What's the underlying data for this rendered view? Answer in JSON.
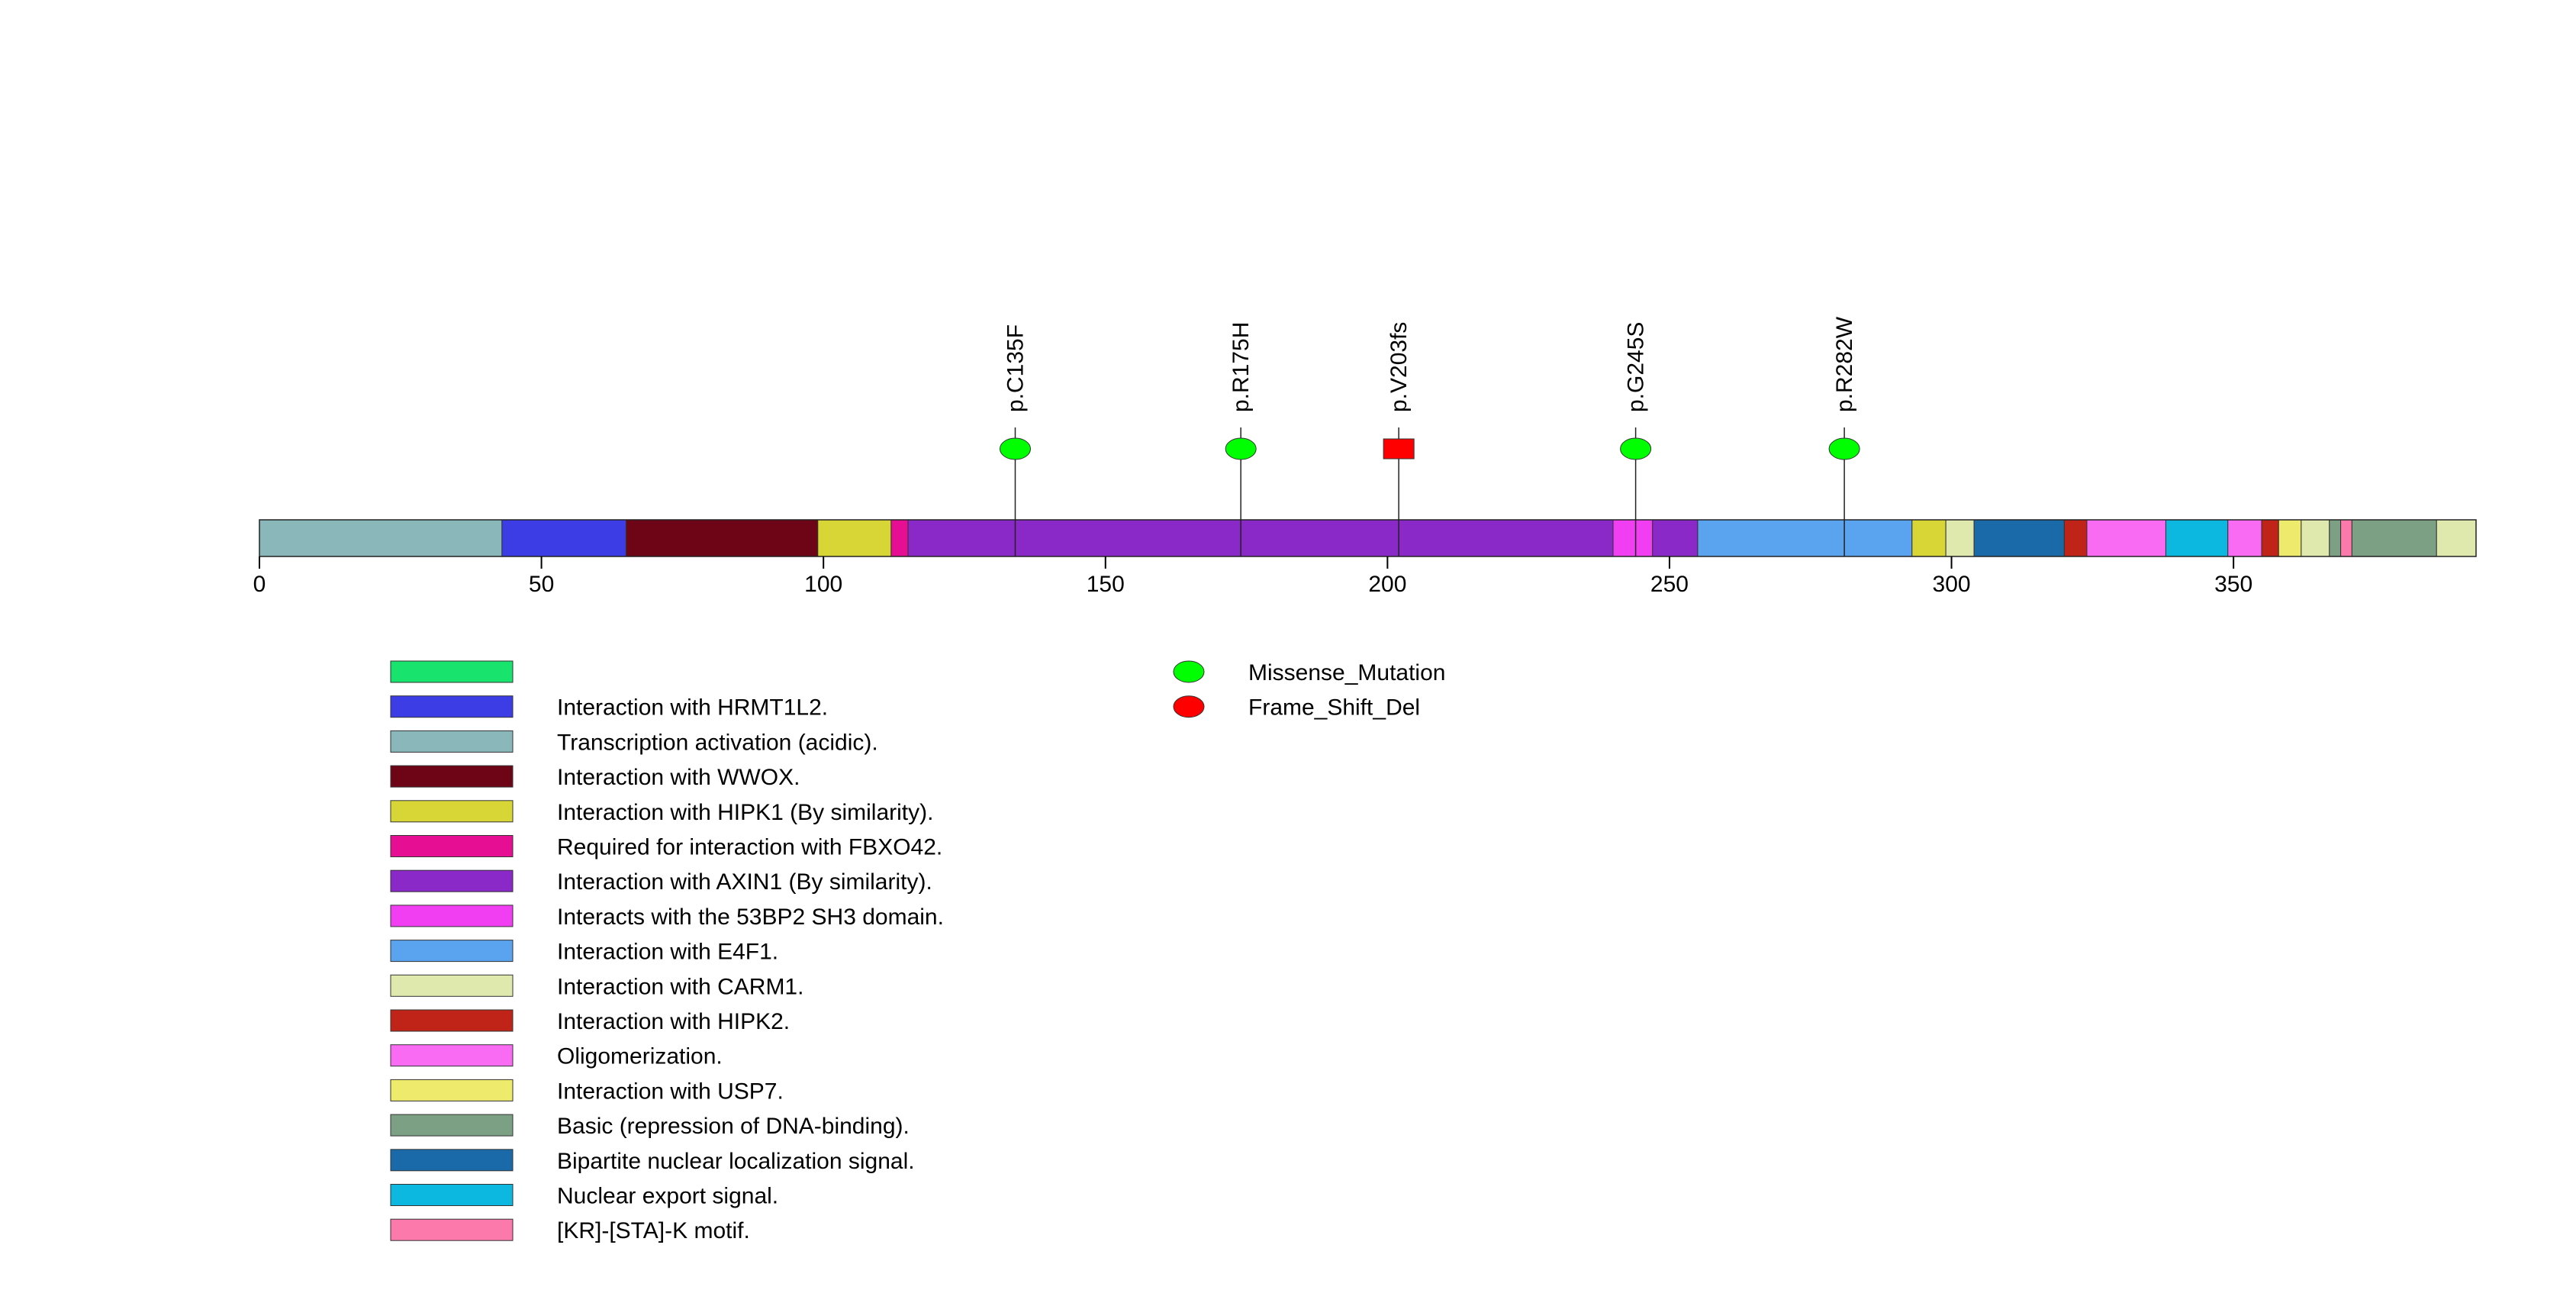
{
  "chart_data": {
    "type": "lollipop",
    "protein_length": 393,
    "axis": {
      "min": 0,
      "max": 393,
      "ticks": [
        0,
        50,
        100,
        150,
        200,
        250,
        300,
        350
      ],
      "tick_labels": [
        "0",
        "50",
        "100",
        "150",
        "200",
        "250",
        "300",
        "350"
      ]
    },
    "regions": [
      {
        "start": 0,
        "end": 43,
        "color": "#8ab7b9",
        "label": "Transcription activation (acidic)."
      },
      {
        "start": 43,
        "end": 65,
        "color": "#3d3de6",
        "label": "Interaction with HRMT1L2."
      },
      {
        "start": 65,
        "end": 99,
        "color": "#6e0517",
        "label": "Interaction with WWOX."
      },
      {
        "start": 99,
        "end": 112,
        "color": "#d8d637",
        "label": "Interaction with HIPK1 (By similarity)."
      },
      {
        "start": 112,
        "end": 115,
        "color": "#e60e93",
        "label": "Required for interaction with FBXO42."
      },
      {
        "start": 115,
        "end": 240,
        "color": "#8b28c8",
        "label": "Interaction with AXIN1 (By similarity)."
      },
      {
        "start": 240,
        "end": 247,
        "color": "#f23ef2",
        "label": "Interacts with the 53BP2 SH3 domain."
      },
      {
        "start": 247,
        "end": 255,
        "color": "#8b28c8",
        "label": "Interaction with AXIN1 (By similarity)."
      },
      {
        "start": 255,
        "end": 293,
        "color": "#5aa3ef",
        "label": "Interaction with E4F1."
      },
      {
        "start": 293,
        "end": 299,
        "color": "#d8d637",
        "label": "Interaction with HIPK1 (By similarity)."
      },
      {
        "start": 299,
        "end": 304,
        "color": "#dfe9ad",
        "label": "Interaction with CARM1."
      },
      {
        "start": 304,
        "end": 320,
        "color": "#1a6aa9",
        "label": "Bipartite nuclear localization signal."
      },
      {
        "start": 320,
        "end": 324,
        "color": "#c02418",
        "label": "Interaction with HIPK2."
      },
      {
        "start": 324,
        "end": 338,
        "color": "#f96bf3",
        "label": "Oligomerization."
      },
      {
        "start": 338,
        "end": 349,
        "color": "#0cb7e0",
        "label": "Nuclear export signal."
      },
      {
        "start": 349,
        "end": 355,
        "color": "#f96bf3",
        "label": "Oligomerization."
      },
      {
        "start": 355,
        "end": 358,
        "color": "#c02418",
        "label": "Interaction with HIPK2."
      },
      {
        "start": 358,
        "end": 362,
        "color": "#eeea6b",
        "label": "Interaction with USP7."
      },
      {
        "start": 362,
        "end": 367,
        "color": "#dfe9ad",
        "label": "Interaction with CARM1."
      },
      {
        "start": 367,
        "end": 369,
        "color": "#7ca083",
        "label": "Basic (repression of DNA-binding)."
      },
      {
        "start": 369,
        "end": 371,
        "color": "#fb79ab",
        "label": "[KR]-[STA]-K motif."
      },
      {
        "start": 371,
        "end": 386,
        "color": "#7ca083",
        "label": "Basic (repression of DNA-binding)."
      },
      {
        "start": 386,
        "end": 393,
        "color": "#dfe9ad",
        "label": "Interaction with CARM1."
      }
    ],
    "mutations": [
      {
        "position": 134,
        "label": "p.C135F",
        "type": "Missense_Mutation"
      },
      {
        "position": 174,
        "label": "p.R175H",
        "type": "Missense_Mutation"
      },
      {
        "position": 202,
        "label": "p.V203fs",
        "type": "Frame_Shift_Del"
      },
      {
        "position": 244,
        "label": "p.G245S",
        "type": "Missense_Mutation"
      },
      {
        "position": 281,
        "label": "p.R282W",
        "type": "Missense_Mutation"
      }
    ],
    "domain_legend": [
      {
        "color": "#17e36d",
        "label": ""
      },
      {
        "color": "#3d3de6",
        "label": "Interaction with HRMT1L2."
      },
      {
        "color": "#8ab7b9",
        "label": "Transcription activation (acidic)."
      },
      {
        "color": "#6e0517",
        "label": "Interaction with WWOX."
      },
      {
        "color": "#d8d637",
        "label": "Interaction with HIPK1 (By similarity)."
      },
      {
        "color": "#e60e93",
        "label": "Required for interaction with FBXO42."
      },
      {
        "color": "#8b28c8",
        "label": "Interaction with AXIN1 (By similarity)."
      },
      {
        "color": "#f23ef2",
        "label": "Interacts with the 53BP2 SH3 domain."
      },
      {
        "color": "#5aa3ef",
        "label": "Interaction with E4F1."
      },
      {
        "color": "#dfe9ad",
        "label": "Interaction with CARM1."
      },
      {
        "color": "#c02418",
        "label": "Interaction with HIPK2."
      },
      {
        "color": "#f96bf3",
        "label": "Oligomerization."
      },
      {
        "color": "#eeea6b",
        "label": "Interaction with USP7."
      },
      {
        "color": "#7ca083",
        "label": "Basic (repression of DNA-binding)."
      },
      {
        "color": "#1a6aa9",
        "label": "Bipartite nuclear localization signal."
      },
      {
        "color": "#0cb7e0",
        "label": "Nuclear export signal."
      },
      {
        "color": "#fb79ab",
        "label": "[KR]-[STA]-K motif."
      }
    ],
    "mutation_legend": [
      {
        "type": "Missense_Mutation",
        "color": "#00ff00",
        "label": "Missense_Mutation"
      },
      {
        "type": "Frame_Shift_Del",
        "color": "#ff0000",
        "label": "Frame_Shift_Del"
      }
    ]
  }
}
